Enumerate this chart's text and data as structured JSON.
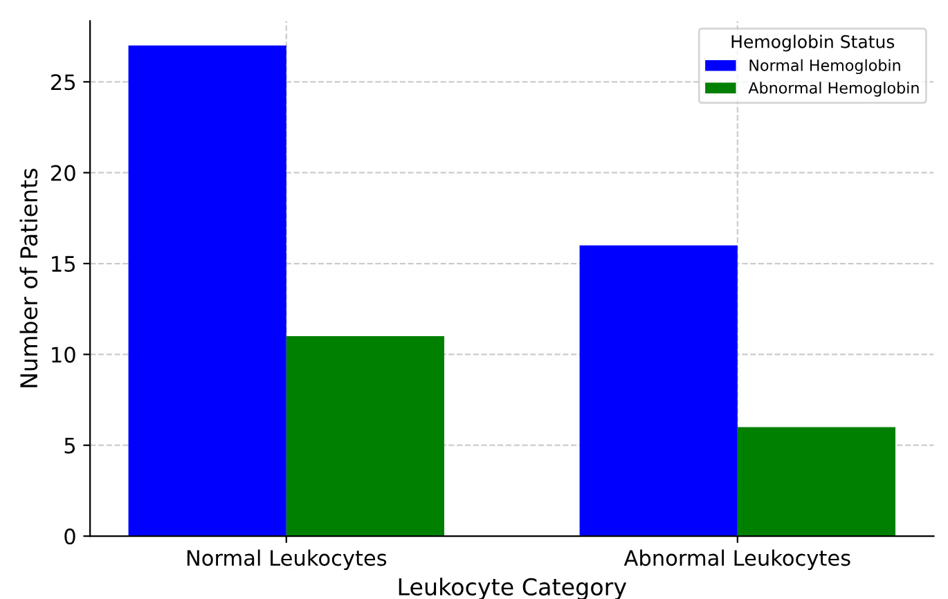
{
  "chart_data": {
    "type": "bar",
    "xlabel": "Leukocyte Category",
    "ylabel": "Number of Patients",
    "legend_title": "Hemoglobin Status",
    "categories": [
      "Normal Leukocytes",
      "Abnormal Leukocytes"
    ],
    "series": [
      {
        "name": "Normal Hemoglobin",
        "color": "#0000ff",
        "values": [
          27,
          16
        ]
      },
      {
        "name": "Abnormal Hemoglobin",
        "color": "#008000",
        "values": [
          11,
          6
        ]
      }
    ],
    "ylim": [
      0,
      28.35
    ],
    "yticks": [
      0,
      5,
      10,
      15,
      20,
      25
    ],
    "grid": true,
    "legend": "top right"
  }
}
